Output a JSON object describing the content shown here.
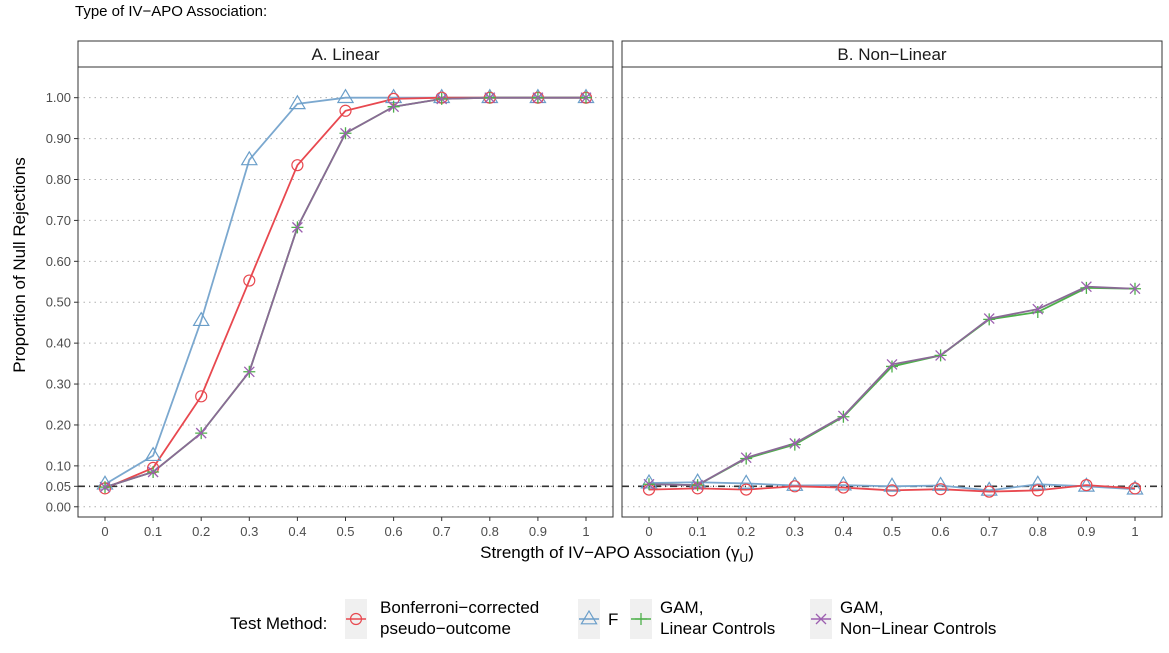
{
  "chart_data": {
    "type": "line",
    "caption": "Type of IV−APO Association:",
    "xlabel_main": "Strength of IV−APO Association (γ",
    "xlabel_sub": "U",
    "xlabel_end": ")",
    "ylabel": "Proportion of Null Rejections",
    "x": [
      0,
      0.1,
      0.2,
      0.3,
      0.4,
      0.5,
      0.6,
      0.7,
      0.8,
      0.9,
      1
    ],
    "x_tick_labels": [
      "0",
      "0.1",
      "0.2",
      "0.3",
      "0.4",
      "0.5",
      "0.6",
      "0.7",
      "0.8",
      "0.9",
      "1"
    ],
    "y_ticks": [
      0,
      0.05,
      0.1,
      0.2,
      0.3,
      0.4,
      0.5,
      0.6,
      0.7,
      0.8,
      0.9,
      1.0
    ],
    "y_tick_labels": [
      "0.00",
      "0.05",
      "0.10",
      "0.20",
      "0.30",
      "0.40",
      "0.50",
      "0.60",
      "0.70",
      "0.80",
      "0.90",
      "1.00"
    ],
    "ylim": [
      -0.025,
      1.075
    ],
    "reference_line": 0.05,
    "grid": true,
    "legend": {
      "title": "Test Method:",
      "position": "bottom",
      "entries": [
        {
          "key": "bonf",
          "line1": "Bonferroni−corrected",
          "line2": "pseudo−outcome",
          "color": "#E8484F",
          "marker": "circle"
        },
        {
          "key": "f",
          "line1": "F",
          "line2": "",
          "color": "#6A9EC9",
          "marker": "triangle"
        },
        {
          "key": "gam_lin",
          "line1": "GAM,",
          "line2": "Linear Controls",
          "color": "#4DAF4A",
          "marker": "plus"
        },
        {
          "key": "gam_nonlin",
          "line1": "GAM,",
          "line2": "Non−Linear Controls",
          "color": "#9C5FB0",
          "marker": "cross"
        }
      ]
    },
    "panels": [
      {
        "title": "A. Linear",
        "series": [
          {
            "name": "F",
            "values": [
              0.055,
              0.125,
              0.455,
              0.848,
              0.985,
              1.0,
              1.0,
              1.0,
              1.0,
              1.0,
              1.0
            ]
          },
          {
            "name": "Bonferroni−corrected pseudo−outcome",
            "values": [
              0.045,
              0.095,
              0.27,
              0.553,
              0.835,
              0.968,
              0.997,
              1.0,
              1.0,
              1.0,
              1.0
            ]
          },
          {
            "name": "GAM, Linear Controls",
            "values": [
              0.048,
              0.085,
              0.18,
              0.33,
              0.683,
              0.913,
              0.978,
              0.997,
              1.0,
              1.0,
              1.0
            ]
          },
          {
            "name": "GAM, Non−Linear Controls",
            "values": [
              0.048,
              0.085,
              0.18,
              0.33,
              0.683,
              0.913,
              0.978,
              0.997,
              1.0,
              1.0,
              1.0
            ]
          }
        ]
      },
      {
        "title": "B. Non−Linear",
        "series": [
          {
            "name": "F",
            "values": [
              0.058,
              0.06,
              0.057,
              0.052,
              0.053,
              0.05,
              0.052,
              0.04,
              0.055,
              0.05,
              0.043
            ]
          },
          {
            "name": "Bonferroni−corrected pseudo−outcome",
            "values": [
              0.042,
              0.045,
              0.042,
              0.05,
              0.047,
              0.04,
              0.043,
              0.037,
              0.04,
              0.053,
              0.045
            ]
          },
          {
            "name": "GAM, Linear Controls",
            "values": [
              0.055,
              0.053,
              0.118,
              0.152,
              0.22,
              0.343,
              0.37,
              0.458,
              0.476,
              0.535,
              0.533
            ]
          },
          {
            "name": "GAM, Non−Linear Controls",
            "values": [
              0.055,
              0.053,
              0.12,
              0.155,
              0.222,
              0.348,
              0.37,
              0.46,
              0.483,
              0.538,
              0.533
            ]
          }
        ]
      }
    ]
  }
}
